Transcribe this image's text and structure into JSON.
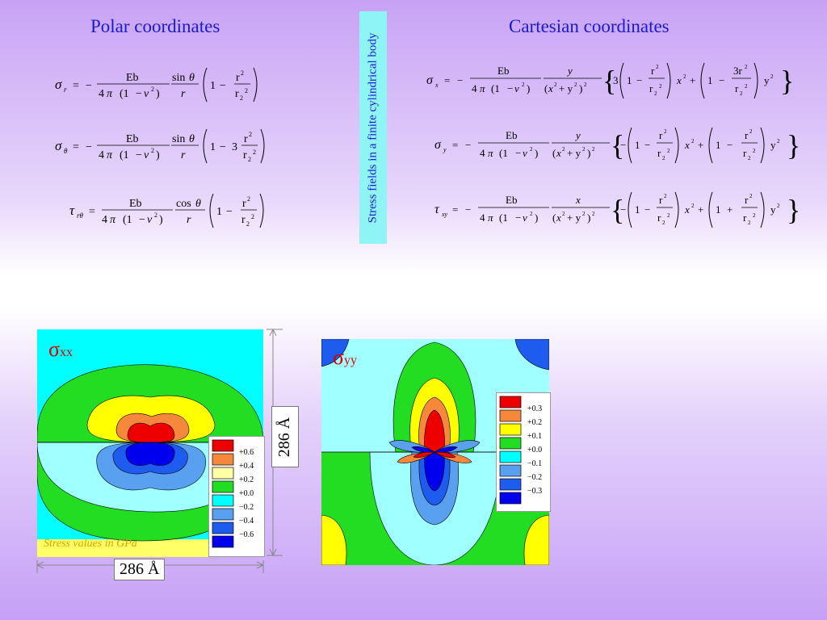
{
  "headings": {
    "polar": "Polar coordinates",
    "cartesian": "Cartesian coordinates",
    "banner": "Stress fields in a finite cylindrical body"
  },
  "equations": {
    "polar_sigma_r": "σ_r = −(Eb / 4π(1 − ν²)) · (sinθ / r) · (1 − r² / r₂²)",
    "polar_sigma_theta": "σ_θ = −(Eb / 4π(1 − ν²)) · (sinθ / r) · (1 − 3 r² / r₂²)",
    "polar_tau_rtheta": "τ_rθ = (Eb / 4π(1 − ν²)) · (cosθ / r) · (1 − r² / r₂²)",
    "cart_sigma_x": "σ_x = −(Eb / 4π(1 − ν²)) · (y / (x² + y²)²) · {3(1 − r²/r₂²)x² + (1 − 3r²/r₂²)y²}",
    "cart_sigma_y": "σ_y = −(Eb / 4π(1 − ν²)) · (y / (x² + y²)²) · {−(1 − r²/r₂²)x² + (1 − r²/r₂²)y²}",
    "cart_tau_xy": "τ_xy = −(Eb / 4π(1 − ν²)) · (x / (x² + y²)²) · {−(1 − r²/r₂²)x² + (1 + r²/r₂²)y²}"
  },
  "plots": {
    "xx": {
      "symbol": "σ",
      "subscript": "xx",
      "legend": [
        "+0.6",
        "+0.4",
        "+0.2",
        "+0.0",
        "−0.2",
        "−0.4",
        "−0.6"
      ]
    },
    "yy": {
      "symbol": "σ",
      "subscript": "yy",
      "legend": [
        "+0.3",
        "+0.2",
        "+0.1",
        "+0.0",
        "−0.1",
        "−0.2",
        "−0.3"
      ]
    }
  },
  "dimension_label": "286 Å",
  "caption": "Stress values in GPa",
  "colors": {
    "red": "#ee0000",
    "orange": "#f5883a",
    "yellow": "#ffff00",
    "light_yellow": "#ffffa8",
    "green": "#22dd22",
    "cyan": "#00ffff",
    "light_cyan": "#a0ffff",
    "light_blue": "#5aa0f0",
    "medium_blue": "#1e5cf0",
    "blue": "#0000ee",
    "heading_blue": "#1a1ad6"
  }
}
